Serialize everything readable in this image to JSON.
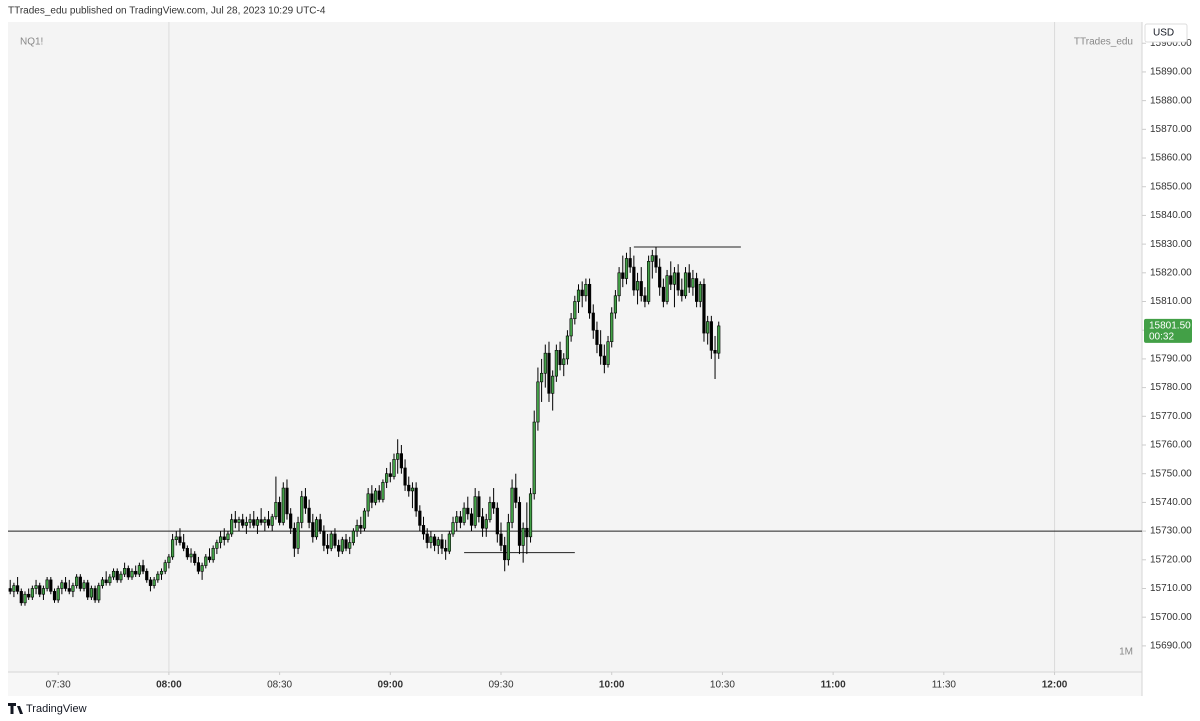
{
  "chart_data": {
    "type": "candlestick",
    "header": "TTrades_edu published on TradingView.com, Jul 28, 2023 10:29 UTC-4",
    "symbol": "NQ1!",
    "author": "TTrades_edu",
    "interval": "1M",
    "currency": "USD",
    "brand": "TradingView",
    "last_price": {
      "value": 15801.5,
      "label": "15801.50"
    },
    "countdown": "00:32",
    "up_color": "#43a047",
    "down_color": "#000000",
    "xlim": [
      436.4,
      743.7
    ],
    "ylim": [
      15680.9,
      15907.4
    ],
    "xticks": [
      {
        "value": 450,
        "label": "07:30"
      },
      {
        "value": 480,
        "label": "08:00"
      },
      {
        "value": 510,
        "label": "08:30"
      },
      {
        "value": 540,
        "label": "09:00"
      },
      {
        "value": 570,
        "label": "09:30"
      },
      {
        "value": 600,
        "label": "10:00"
      },
      {
        "value": 630,
        "label": "10:30"
      },
      {
        "value": 660,
        "label": "11:00"
      },
      {
        "value": 690,
        "label": "11:30"
      },
      {
        "value": 720,
        "label": "12:00"
      }
    ],
    "yticks": [
      {
        "value": 15690,
        "label": "15690.00"
      },
      {
        "value": 15700,
        "label": "15700.00"
      },
      {
        "value": 15710,
        "label": "15710.00"
      },
      {
        "value": 15720,
        "label": "15720.00"
      },
      {
        "value": 15730,
        "label": "15730.00"
      },
      {
        "value": 15740,
        "label": "15740.00"
      },
      {
        "value": 15750,
        "label": "15750.00"
      },
      {
        "value": 15760,
        "label": "15760.00"
      },
      {
        "value": 15770,
        "label": "15770.00"
      },
      {
        "value": 15780,
        "label": "15780.00"
      },
      {
        "value": 15790,
        "label": "15790.00"
      },
      {
        "value": 15800,
        "label": "15800.00"
      },
      {
        "value": 15810,
        "label": "15810.00"
      },
      {
        "value": 15820,
        "label": "15820.00"
      },
      {
        "value": 15830,
        "label": "15830.00"
      },
      {
        "value": 15840,
        "label": "15840.00"
      },
      {
        "value": 15850,
        "label": "15850.00"
      },
      {
        "value": 15860,
        "label": "15860.00"
      },
      {
        "value": 15870,
        "label": "15870.00"
      },
      {
        "value": 15880,
        "label": "15880.00"
      },
      {
        "value": 15890,
        "label": "15890.00"
      },
      {
        "value": 15900,
        "label": "15900.00"
      }
    ],
    "session_breaks": [
      480,
      720
    ],
    "levels": [
      {
        "value": 15730
      },
      {
        "value": 15829,
        "from": 606,
        "to": 635
      },
      {
        "value": 15722.5,
        "from": 560,
        "to": 590
      }
    ],
    "x": [
      437,
      438,
      439,
      440,
      441,
      442,
      443,
      444,
      445,
      446,
      447,
      448,
      449,
      450,
      451,
      452,
      453,
      454,
      455,
      456,
      457,
      458,
      459,
      460,
      461,
      462,
      463,
      464,
      465,
      466,
      467,
      468,
      469,
      470,
      471,
      472,
      473,
      474,
      475,
      476,
      477,
      478,
      479,
      480,
      481,
      482,
      483,
      484,
      485,
      486,
      487,
      488,
      489,
      490,
      491,
      492,
      493,
      494,
      495,
      496,
      497,
      498,
      499,
      500,
      501,
      502,
      503,
      504,
      505,
      506,
      507,
      508,
      509,
      510,
      511,
      512,
      513,
      514,
      515,
      516,
      517,
      518,
      519,
      520,
      521,
      522,
      523,
      524,
      525,
      526,
      527,
      528,
      529,
      530,
      531,
      532,
      533,
      534,
      535,
      536,
      537,
      538,
      539,
      540,
      541,
      542,
      543,
      544,
      545,
      546,
      547,
      548,
      549,
      550,
      551,
      552,
      553,
      554,
      555,
      556,
      557,
      558,
      559,
      560,
      561,
      562,
      563,
      564,
      565,
      566,
      567,
      568,
      569,
      570,
      571,
      572,
      573,
      574,
      575,
      576,
      577,
      578,
      579,
      580,
      581,
      582,
      583,
      584,
      585,
      586,
      587,
      588,
      589,
      590,
      591,
      592,
      593,
      594,
      595,
      596,
      597,
      598,
      599,
      600,
      601,
      602,
      603,
      604,
      605,
      606,
      607,
      608,
      609,
      610,
      611,
      612,
      613,
      614,
      615,
      616,
      617,
      618,
      619,
      620,
      621,
      622,
      623,
      624,
      625,
      626,
      627,
      628,
      629
    ],
    "candles": [
      [
        15710,
        15713,
        15708,
        15709
      ],
      [
        15709,
        15712,
        15707,
        15711
      ],
      [
        15711,
        15714,
        15708,
        15709
      ],
      [
        15709,
        15710,
        15704,
        15705
      ],
      [
        15705,
        15709,
        15704,
        15708
      ],
      [
        15708,
        15710,
        15706,
        15707
      ],
      [
        15707,
        15711,
        15706,
        15710
      ],
      [
        15710,
        15713,
        15708,
        15711
      ],
      [
        15711,
        15712,
        15707,
        15708
      ],
      [
        15708,
        15711,
        15706,
        15710
      ],
      [
        15710,
        15714,
        15709,
        15713
      ],
      [
        15713,
        15714,
        15708,
        15709
      ],
      [
        15709,
        15710,
        15705,
        15706
      ],
      [
        15706,
        15711,
        15705,
        15710
      ],
      [
        15710,
        15713,
        15708,
        15712
      ],
      [
        15712,
        15714,
        15709,
        15710
      ],
      [
        15710,
        15713,
        15708,
        15709
      ],
      [
        15709,
        15712,
        15707,
        15711
      ],
      [
        15711,
        15715,
        15710,
        15714
      ],
      [
        15714,
        15715,
        15709,
        15710
      ],
      [
        15710,
        15713,
        15709,
        15712
      ],
      [
        15712,
        15713,
        15706,
        15707
      ],
      [
        15707,
        15711,
        15706,
        15710
      ],
      [
        15710,
        15711,
        15705,
        15706
      ],
      [
        15706,
        15712,
        15705,
        15711
      ],
      [
        15711,
        15714,
        15710,
        15713
      ],
      [
        15713,
        15716,
        15711,
        15712
      ],
      [
        15712,
        15715,
        15711,
        15714
      ],
      [
        15714,
        15717,
        15713,
        15716
      ],
      [
        15716,
        15717,
        15712,
        15713
      ],
      [
        15713,
        15716,
        15712,
        15715
      ],
      [
        15715,
        15719,
        15714,
        15717
      ],
      [
        15717,
        15718,
        15713,
        15714
      ],
      [
        15714,
        15717,
        15713,
        15716
      ],
      [
        15716,
        15718,
        15714,
        15715
      ],
      [
        15715,
        15719,
        15714,
        15718
      ],
      [
        15718,
        15720,
        15715,
        15716
      ],
      [
        15716,
        15717,
        15712,
        15713
      ],
      [
        15713,
        15714,
        15709,
        15711
      ],
      [
        15711,
        15714,
        15710,
        15713
      ],
      [
        15713,
        15716,
        15712,
        15715
      ],
      [
        15715,
        15717,
        15713,
        15716
      ],
      [
        15716,
        15720,
        15715,
        15719
      ],
      [
        15719,
        15722,
        15717,
        15721
      ],
      [
        15721,
        15729,
        15720,
        15727
      ],
      [
        15727,
        15730,
        15725,
        15728
      ],
      [
        15728,
        15731,
        15725,
        15726
      ],
      [
        15726,
        15729,
        15723,
        15724
      ],
      [
        15724,
        15725,
        15720,
        15721
      ],
      [
        15721,
        15724,
        15719,
        15722
      ],
      [
        15722,
        15723,
        15718,
        15719
      ],
      [
        15719,
        15721,
        15715,
        15716
      ],
      [
        15716,
        15719,
        15713,
        15718
      ],
      [
        15718,
        15722,
        15717,
        15721
      ],
      [
        15721,
        15724,
        15719,
        15720
      ],
      [
        15720,
        15725,
        15719,
        15724
      ],
      [
        15724,
        15727,
        15722,
        15726
      ],
      [
        15726,
        15730,
        15724,
        15728
      ],
      [
        15728,
        15731,
        15725,
        15727
      ],
      [
        15727,
        15730,
        15726,
        15729
      ],
      [
        15729,
        15736,
        15728,
        15734
      ],
      [
        15734,
        15737,
        15731,
        15733
      ],
      [
        15733,
        15735,
        15730,
        15734
      ],
      [
        15734,
        15736,
        15731,
        15732
      ],
      [
        15732,
        15735,
        15729,
        15733
      ],
      [
        15733,
        15736,
        15731,
        15734
      ],
      [
        15734,
        15737,
        15731,
        15732
      ],
      [
        15732,
        15735,
        15729,
        15734
      ],
      [
        15734,
        15738,
        15732,
        15733
      ],
      [
        15733,
        15735,
        15730,
        15734
      ],
      [
        15734,
        15737,
        15731,
        15732
      ],
      [
        15732,
        15736,
        15730,
        15735
      ],
      [
        15735,
        15749,
        15734,
        15740
      ],
      [
        15740,
        15742,
        15732,
        15733
      ],
      [
        15733,
        15747,
        15732,
        15745
      ],
      [
        15745,
        15748,
        15734,
        15736
      ],
      [
        15736,
        15738,
        15729,
        15731
      ],
      [
        15731,
        15733,
        15721,
        15724
      ],
      [
        15724,
        15735,
        15722,
        15733
      ],
      [
        15733,
        15744,
        15731,
        15742
      ],
      [
        15742,
        15745,
        15736,
        15738
      ],
      [
        15738,
        15741,
        15731,
        15733
      ],
      [
        15733,
        15736,
        15726,
        15728
      ],
      [
        15728,
        15735,
        15727,
        15734
      ],
      [
        15734,
        15736,
        15729,
        15730
      ],
      [
        15730,
        15732,
        15723,
        15725
      ],
      [
        15725,
        15729,
        15722,
        15724
      ],
      [
        15724,
        15730,
        15723,
        15729
      ],
      [
        15729,
        15731,
        15724,
        15725
      ],
      [
        15725,
        15727,
        15721,
        15723
      ],
      [
        15723,
        15728,
        15722,
        15727
      ],
      [
        15727,
        15729,
        15723,
        15724
      ],
      [
        15724,
        15728,
        15722,
        15726
      ],
      [
        15726,
        15731,
        15725,
        15730
      ],
      [
        15730,
        15734,
        15728,
        15732
      ],
      [
        15732,
        15735,
        15729,
        15731
      ],
      [
        15731,
        15738,
        15730,
        15737
      ],
      [
        15737,
        15745,
        15735,
        15743
      ],
      [
        15743,
        15746,
        15738,
        15740
      ],
      [
        15740,
        15745,
        15739,
        15744
      ],
      [
        15744,
        15746,
        15740,
        15741
      ],
      [
        15741,
        15748,
        15740,
        15747
      ],
      [
        15747,
        15752,
        15745,
        15750
      ],
      [
        15750,
        15754,
        15747,
        15749
      ],
      [
        15749,
        15757,
        15748,
        15755
      ],
      [
        15755,
        15762,
        15750,
        15757
      ],
      [
        15757,
        15760,
        15750,
        15752
      ],
      [
        15752,
        15755,
        15744,
        15746
      ],
      [
        15746,
        15749,
        15742,
        15744
      ],
      [
        15744,
        15747,
        15738,
        15745
      ],
      [
        15745,
        15747,
        15735,
        15737
      ],
      [
        15737,
        15739,
        15730,
        15732
      ],
      [
        15732,
        15735,
        15727,
        15729
      ],
      [
        15729,
        15731,
        15724,
        15726
      ],
      [
        15726,
        15730,
        15724,
        15728
      ],
      [
        15728,
        15729,
        15723,
        15725
      ],
      [
        15725,
        15728,
        15722,
        15727
      ],
      [
        15727,
        15729,
        15722,
        15724
      ],
      [
        15724,
        15727,
        15720,
        15723
      ],
      [
        15723,
        15730,
        15722,
        15729
      ],
      [
        15729,
        15735,
        15728,
        15733
      ],
      [
        15733,
        15737,
        15730,
        15735
      ],
      [
        15735,
        15737,
        15731,
        15733
      ],
      [
        15733,
        15740,
        15732,
        15738
      ],
      [
        15738,
        15742,
        15734,
        15736
      ],
      [
        15736,
        15738,
        15730,
        15732
      ],
      [
        15732,
        15745,
        15731,
        15742
      ],
      [
        15742,
        15744,
        15733,
        15735
      ],
      [
        15735,
        15738,
        15728,
        15731
      ],
      [
        15731,
        15736,
        15728,
        15734
      ],
      [
        15734,
        15742,
        15733,
        15740
      ],
      [
        15740,
        15745,
        15736,
        15738
      ],
      [
        15738,
        15740,
        15726,
        15729
      ],
      [
        15729,
        15733,
        15723,
        15725
      ],
      [
        15725,
        15728,
        15716,
        15720
      ],
      [
        15720,
        15736,
        15718,
        15733
      ],
      [
        15733,
        15748,
        15731,
        15745
      ],
      [
        15745,
        15750,
        15738,
        15740
      ],
      [
        15740,
        15742,
        15722,
        15725
      ],
      [
        15725,
        15733,
        15719,
        15731
      ],
      [
        15731,
        15740,
        15722,
        15728
      ],
      [
        15728,
        15745,
        15726,
        15743
      ],
      [
        15743,
        15772,
        15741,
        15768
      ],
      [
        15768,
        15787,
        15765,
        15782
      ],
      [
        15782,
        15790,
        15775,
        15785
      ],
      [
        15785,
        15795,
        15780,
        15792
      ],
      [
        15792,
        15796,
        15775,
        15778
      ],
      [
        15778,
        15786,
        15772,
        15784
      ],
      [
        15784,
        15795,
        15782,
        15793
      ],
      [
        15793,
        15796,
        15786,
        15788
      ],
      [
        15788,
        15792,
        15784,
        15790
      ],
      [
        15790,
        15800,
        15788,
        15798
      ],
      [
        15798,
        15806,
        15796,
        15804
      ],
      [
        15804,
        15812,
        15802,
        15810
      ],
      [
        15810,
        15816,
        15806,
        15814
      ],
      [
        15814,
        15817,
        15808,
        15812
      ],
      [
        15812,
        15818,
        15810,
        15816
      ],
      [
        15816,
        15818,
        15804,
        15806
      ],
      [
        15806,
        15809,
        15797,
        15800
      ],
      [
        15800,
        15803,
        15792,
        15795
      ],
      [
        15795,
        15800,
        15788,
        15791
      ],
      [
        15791,
        15795,
        15785,
        15788
      ],
      [
        15788,
        15798,
        15787,
        15796
      ],
      [
        15796,
        15808,
        15794,
        15806
      ],
      [
        15806,
        15814,
        15804,
        15812
      ],
      [
        15812,
        15822,
        15810,
        15820
      ],
      [
        15820,
        15826,
        15815,
        15818
      ],
      [
        15818,
        15827,
        15816,
        15825
      ],
      [
        15825,
        15829,
        15820,
        15822
      ],
      [
        15822,
        15826,
        15812,
        15814
      ],
      [
        15814,
        15820,
        15809,
        15817
      ],
      [
        15817,
        15822,
        15810,
        15812
      ],
      [
        15812,
        15815,
        15808,
        15810
      ],
      [
        15810,
        15826,
        15809,
        15824
      ],
      [
        15824,
        15828,
        15818,
        15826
      ],
      [
        15826,
        15829,
        15820,
        15822
      ],
      [
        15822,
        15825,
        15812,
        15815
      ],
      [
        15815,
        15818,
        15808,
        15810
      ],
      [
        15810,
        15821,
        15809,
        15819
      ],
      [
        15819,
        15824,
        15814,
        15816
      ],
      [
        15816,
        15822,
        15808,
        15820
      ],
      [
        15820,
        15823,
        15812,
        15814
      ],
      [
        15814,
        15818,
        15810,
        15812
      ],
      [
        15812,
        15822,
        15811,
        15820
      ],
      [
        15820,
        15823,
        15813,
        15815
      ],
      [
        15815,
        15821,
        15812,
        15818
      ],
      [
        15818,
        15820,
        15808,
        15810
      ],
      [
        15810,
        15817,
        15808,
        15816
      ],
      [
        15816,
        15818,
        15796,
        15799
      ],
      [
        15799,
        15805,
        15795,
        15803
      ],
      [
        15803,
        15805,
        15790,
        15793
      ],
      [
        15793,
        15798,
        15783,
        15792
      ],
      [
        15792,
        15803,
        15790,
        15801.5
      ]
    ]
  }
}
